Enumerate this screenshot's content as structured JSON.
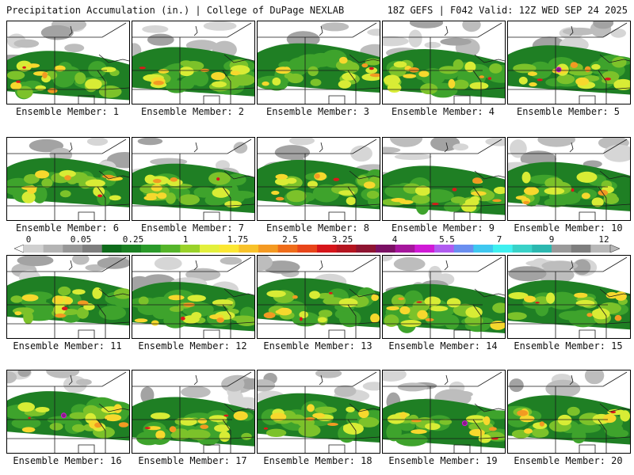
{
  "header": {
    "title": "Precipitation Accumulation (in.) | College of DuPage NEXLAB",
    "run_info": "18Z GEFS | F042 Valid: 12Z WED SEP 24 2025"
  },
  "legend": {
    "tick_labels": [
      "0",
      "0.05",
      "0.25",
      "1",
      "1.75",
      "2.5",
      "3.25",
      "4",
      "5.5",
      "7",
      "9",
      "12"
    ],
    "colors": [
      "#d0d0d0",
      "#b4b4b4",
      "#989898",
      "#7e7e7e",
      "#0e6b1b",
      "#1a7f22",
      "#2a9a2a",
      "#55b52a",
      "#9ad22a",
      "#e3f03c",
      "#fbe733",
      "#f8c22a",
      "#f49a22",
      "#ef6c1a",
      "#e8451a",
      "#d6151a",
      "#b4141f",
      "#8e1431",
      "#7a1063",
      "#a5169c",
      "#d01ad6",
      "#b05cf0",
      "#6a8ff0",
      "#3fc8f0",
      "#3ff0f0",
      "#39d2c8",
      "#2cb8b0",
      "#9a9a9a",
      "#7e7e7e",
      "#b8b8b8"
    ]
  },
  "members": [
    {
      "label": "Ensemble Member: 1"
    },
    {
      "label": "Ensemble Member: 2"
    },
    {
      "label": "Ensemble Member: 3"
    },
    {
      "label": "Ensemble Member: 4"
    },
    {
      "label": "Ensemble Member: 5"
    },
    {
      "label": "Ensemble Member: 6"
    },
    {
      "label": "Ensemble Member: 7"
    },
    {
      "label": "Ensemble Member: 8"
    },
    {
      "label": "Ensemble Member: 9"
    },
    {
      "label": "Ensemble Member: 10"
    },
    {
      "label": "Ensemble Member: 11"
    },
    {
      "label": "Ensemble Member: 12"
    },
    {
      "label": "Ensemble Member: 13"
    },
    {
      "label": "Ensemble Member: 14"
    },
    {
      "label": "Ensemble Member: 15"
    },
    {
      "label": "Ensemble Member: 16"
    },
    {
      "label": "Ensemble Member: 17"
    },
    {
      "label": "Ensemble Member: 18"
    },
    {
      "label": "Ensemble Member: 19"
    },
    {
      "label": "Ensemble Member: 20"
    }
  ]
}
